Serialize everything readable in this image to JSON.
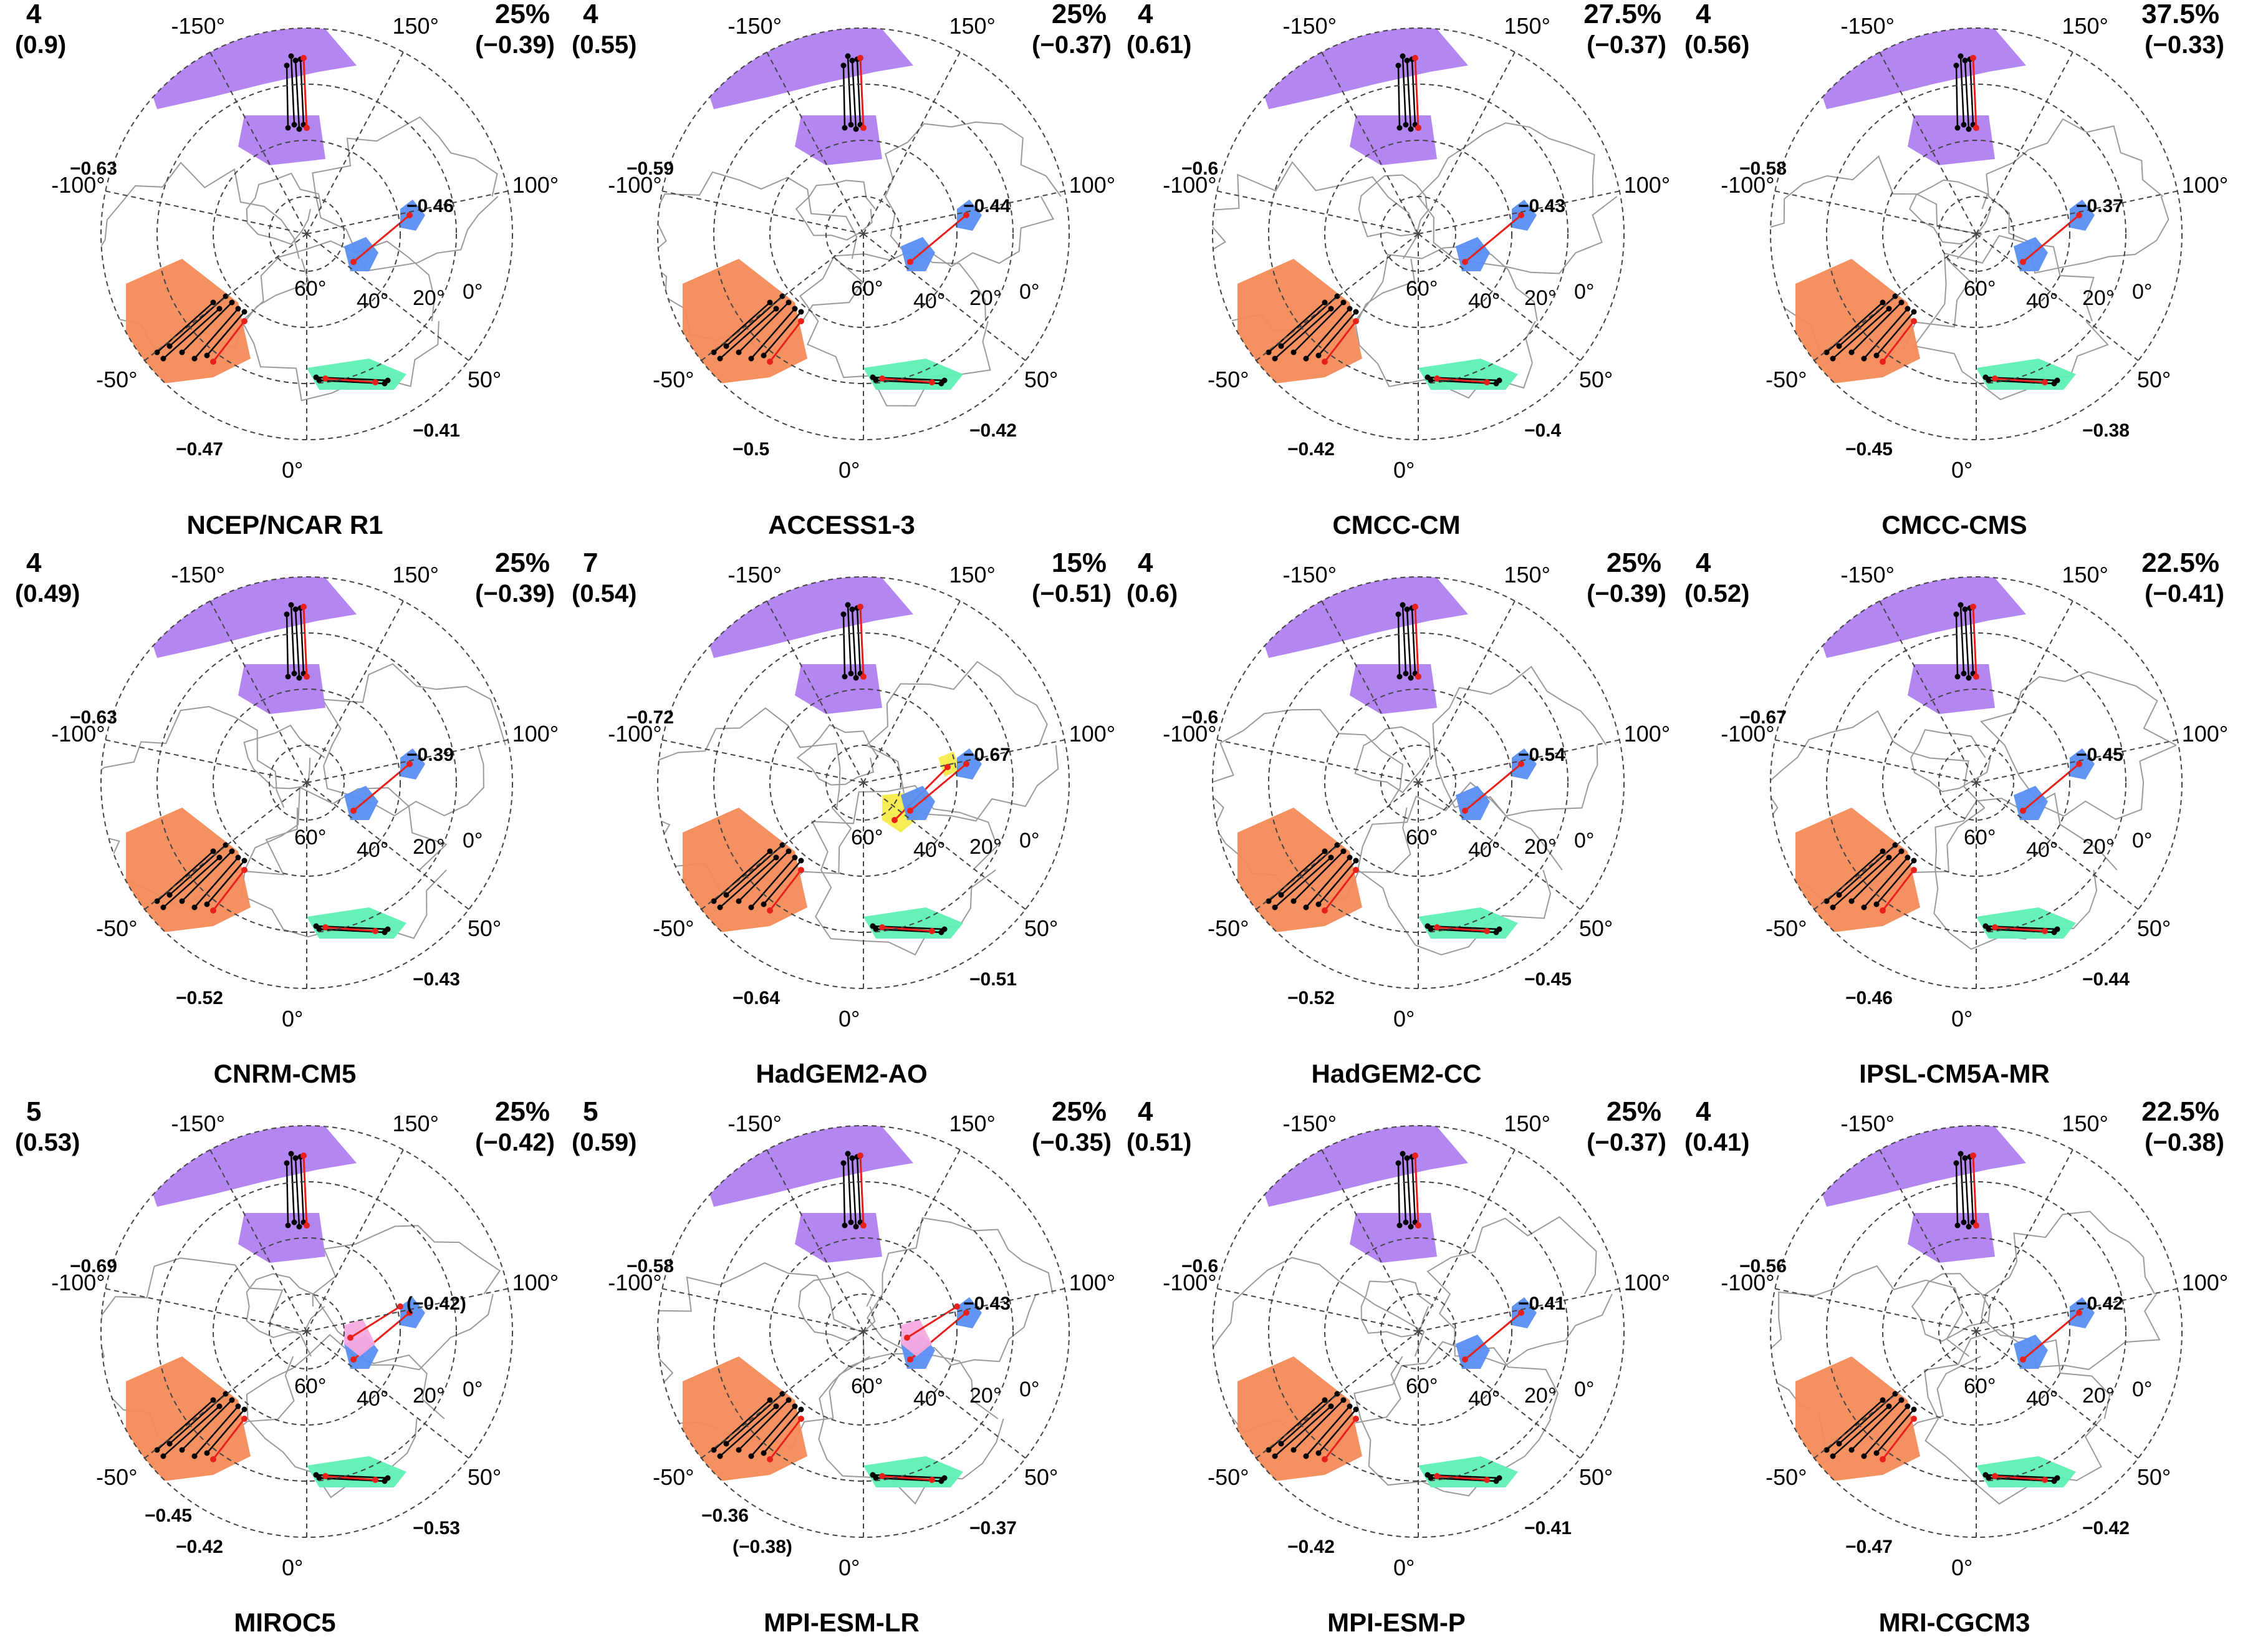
{
  "common": {
    "lon_labels": [
      "-150°",
      "150°",
      "-100°",
      "100°",
      "-50°",
      "50°",
      "0°"
    ],
    "lat_labels": [
      "60°",
      "40°",
      "20°",
      "0°"
    ]
  },
  "colors": {
    "purple": "#b07ff0",
    "orange": "#f48a58",
    "green": "#5ef0b4",
    "blue": "#5a8ef2",
    "yellow": "#f5ec4c",
    "pink": "#f5a9e0",
    "red_line": "#e8201c",
    "black_line": "#000000",
    "grid": "#444444",
    "coast": "#9a9a9a"
  },
  "panels": [
    {
      "name": "NCEP/NCAR R1",
      "clusters": "4",
      "clusters_value": "(0.9)",
      "percent": "25%",
      "percent_value": "(−0.39)",
      "labels": [
        "−0.63",
        "−0.46",
        "−0.47",
        "−0.41"
      ],
      "regions": [
        "purple",
        "orange",
        "green",
        "blue"
      ]
    },
    {
      "name": "ACCESS1-3",
      "clusters": "4",
      "clusters_value": "(0.55)",
      "percent": "25%",
      "percent_value": "(−0.37)",
      "labels": [
        "−0.59",
        "−0.44",
        "−0.5",
        "−0.42"
      ],
      "regions": [
        "purple",
        "orange",
        "green",
        "blue"
      ]
    },
    {
      "name": "CMCC-CM",
      "clusters": "4",
      "clusters_value": "(0.61)",
      "percent": "27.5%",
      "percent_value": "(−0.37)",
      "labels": [
        "−0.6",
        "−0.43",
        "−0.42",
        "−0.4"
      ],
      "regions": [
        "purple",
        "orange",
        "green",
        "blue"
      ]
    },
    {
      "name": "CMCC-CMS",
      "clusters": "4",
      "clusters_value": "(0.56)",
      "percent": "37.5%",
      "percent_value": "(−0.33)",
      "labels": [
        "−0.58",
        "−0.37",
        "−0.45",
        "−0.38"
      ],
      "regions": [
        "purple",
        "orange",
        "green",
        "blue"
      ]
    },
    {
      "name": "CNRM-CM5",
      "clusters": "4",
      "clusters_value": "(0.49)",
      "percent": "25%",
      "percent_value": "(−0.39)",
      "labels": [
        "−0.63",
        "−0.39",
        "−0.52",
        "−0.43"
      ],
      "regions": [
        "purple",
        "orange",
        "green",
        "blue"
      ]
    },
    {
      "name": "HadGEM2-AO",
      "clusters": "7",
      "clusters_value": "(0.54)",
      "percent": "15%",
      "percent_value": "(−0.51)",
      "labels": [
        "−0.72",
        "−0.67",
        "−0.64",
        "−0.51"
      ],
      "regions": [
        "purple",
        "green",
        "yellow",
        "blue",
        "orange"
      ]
    },
    {
      "name": "HadGEM2-CC",
      "clusters": "4",
      "clusters_value": "(0.6)",
      "percent": "25%",
      "percent_value": "(−0.39)",
      "labels": [
        "−0.6",
        "−0.54",
        "−0.52",
        "−0.45"
      ],
      "regions": [
        "purple",
        "orange",
        "green",
        "blue"
      ]
    },
    {
      "name": "IPSL-CM5A-MR",
      "clusters": "4",
      "clusters_value": "(0.52)",
      "percent": "22.5%",
      "percent_value": "(−0.41)",
      "labels": [
        "−0.67",
        "−0.45",
        "−0.46",
        "−0.44"
      ],
      "regions": [
        "purple",
        "orange",
        "green",
        "blue"
      ]
    },
    {
      "name": "MIROC5",
      "clusters": "5",
      "clusters_value": "(0.53)",
      "percent": "25%",
      "percent_value": "(−0.42)",
      "labels": [
        "−0.69",
        "(−0.42)",
        "−0.42",
        "−0.53",
        "−0.45"
      ],
      "regions": [
        "purple",
        "orange",
        "green",
        "blue",
        "pink"
      ]
    },
    {
      "name": "MPI-ESM-LR",
      "clusters": "5",
      "clusters_value": "(0.59)",
      "percent": "25%",
      "percent_value": "(−0.35)",
      "labels": [
        "−0.58",
        "−0.43",
        "(−0.38)",
        "−0.37",
        "−0.36"
      ],
      "regions": [
        "purple",
        "orange",
        "green",
        "blue",
        "pink"
      ]
    },
    {
      "name": "MPI-ESM-P",
      "clusters": "4",
      "clusters_value": "(0.51)",
      "percent": "25%",
      "percent_value": "(−0.37)",
      "labels": [
        "−0.6",
        "−0.41",
        "−0.42",
        "−0.41"
      ],
      "regions": [
        "purple",
        "orange",
        "green",
        "blue"
      ]
    },
    {
      "name": "MRI-CGCM3",
      "clusters": "4",
      "clusters_value": "(0.41)",
      "percent": "22.5%",
      "percent_value": "(−0.38)",
      "labels": [
        "−0.56",
        "−0.42",
        "−0.47",
        "−0.42"
      ],
      "regions": [
        "purple",
        "orange",
        "green",
        "blue"
      ]
    }
  ]
}
